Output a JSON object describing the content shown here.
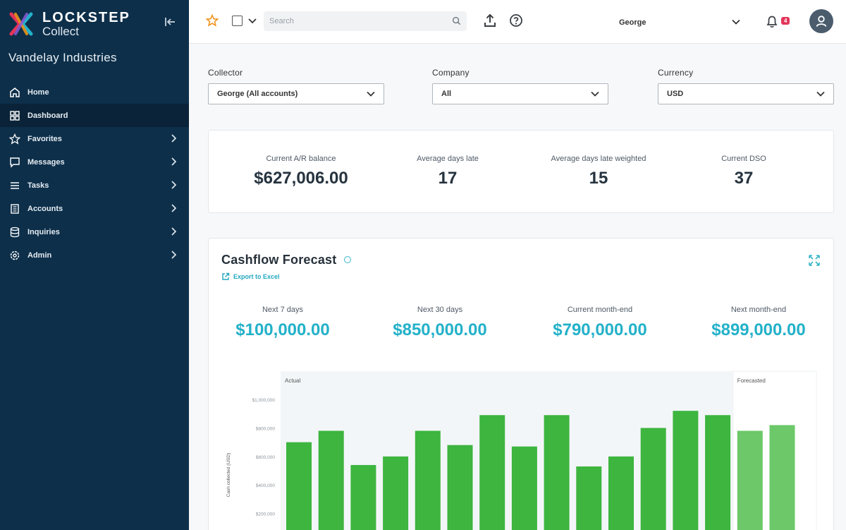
{
  "app": {
    "brand": "LOCKSTEP",
    "product": "Collect",
    "org_name": "Vandelay Industries"
  },
  "sidebar": {
    "items": [
      {
        "label": "Home",
        "icon": "home-icon",
        "has_chevron": false,
        "active": false
      },
      {
        "label": "Dashboard",
        "icon": "dashboard-icon",
        "has_chevron": false,
        "active": true
      },
      {
        "label": "Favorites",
        "icon": "star-icon",
        "has_chevron": true,
        "active": false
      },
      {
        "label": "Messages",
        "icon": "message-icon",
        "has_chevron": true,
        "active": false
      },
      {
        "label": "Tasks",
        "icon": "list-icon",
        "has_chevron": true,
        "active": false
      },
      {
        "label": "Accounts",
        "icon": "building-icon",
        "has_chevron": true,
        "active": false
      },
      {
        "label": "Inquiries",
        "icon": "database-icon",
        "has_chevron": true,
        "active": false
      },
      {
        "label": "Admin",
        "icon": "gear-icon",
        "has_chevron": true,
        "active": false
      }
    ]
  },
  "topbar": {
    "search_placeholder": "Search",
    "user_select": "George",
    "notification_count": "4"
  },
  "filters": {
    "collector": {
      "label": "Collector",
      "value": "George (All accounts)"
    },
    "company": {
      "label": "Company",
      "value": "All"
    },
    "currency": {
      "label": "Currency",
      "value": "USD"
    }
  },
  "kpis": [
    {
      "label": "Current A/R balance",
      "value": "$627,006.00"
    },
    {
      "label": "Average days late",
      "value": "17"
    },
    {
      "label": "Average days late weighted",
      "value": "15"
    },
    {
      "label": "Current DSO",
      "value": "37"
    }
  ],
  "cashflow": {
    "title": "Cashflow Forecast",
    "export_label": "Export to Excel",
    "forecasts": [
      {
        "label": "Next 7 days",
        "value": "$100,000.00"
      },
      {
        "label": "Next 30 days",
        "value": "$850,000.00"
      },
      {
        "label": "Current month-end",
        "value": "$790,000.00"
      },
      {
        "label": "Next month-end",
        "value": "$899,000.00"
      }
    ]
  },
  "chart_data": {
    "type": "bar",
    "ylabel": "Cash collected (USD)",
    "yticks": [
      "$1,000,000",
      "$800,000",
      "$600,000",
      "$400,000",
      "$200,000"
    ],
    "ytick_values": [
      1000000,
      800000,
      600000,
      400000,
      200000
    ],
    "ylim": [
      0,
      1000000
    ],
    "regions": [
      {
        "label": "Actual"
      },
      {
        "label": "Forecasted"
      }
    ],
    "series": [
      {
        "name": "Actual",
        "values": [
          700000,
          780000,
          540000,
          600000,
          780000,
          680000,
          890000,
          670000,
          890000,
          530000,
          600000,
          800000,
          920000,
          890000
        ]
      },
      {
        "name": "Forecasted",
        "values": [
          780000,
          820000
        ]
      }
    ],
    "colors": {
      "actual": "#3db53f",
      "forecast": "#6cc868",
      "forecast_dark": "#2a9e2e",
      "actual_bg": "#f3f6f8"
    }
  }
}
